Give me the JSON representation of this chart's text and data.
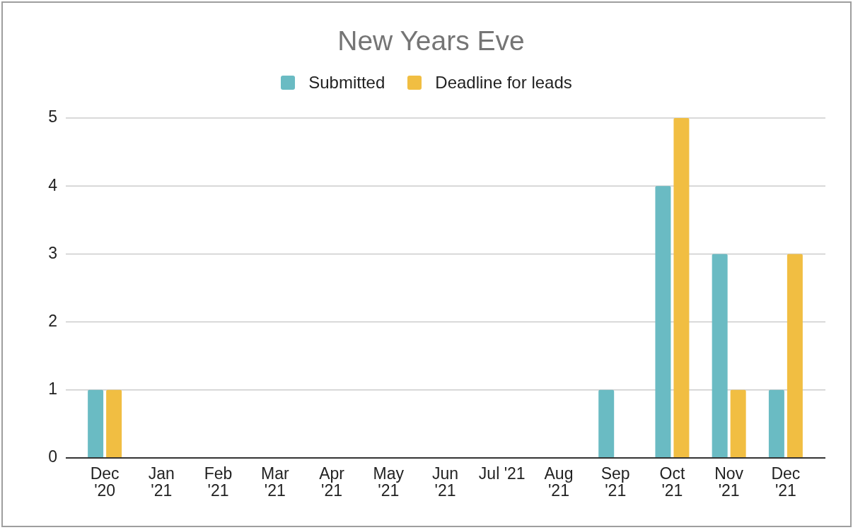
{
  "chart_data": {
    "type": "bar",
    "title": "New Years Eve",
    "categories": [
      "Dec '20",
      "Jan '21",
      "Feb '21",
      "Mar '21",
      "Apr '21",
      "May '21",
      "Jun '21",
      "Jul '21",
      "Aug '21",
      "Sep '21",
      "Oct '21",
      "Nov '21",
      "Dec '21"
    ],
    "series": [
      {
        "name": "Submitted",
        "color": "#6abbc3",
        "values": [
          1,
          0,
          0,
          0,
          0,
          0,
          0,
          0,
          0,
          1,
          4,
          3,
          1
        ]
      },
      {
        "name": "Deadline for leads",
        "color": "#f1be42",
        "values": [
          1,
          0,
          0,
          0,
          0,
          0,
          0,
          0,
          0,
          0,
          5,
          1,
          3
        ]
      }
    ],
    "ylim": [
      0,
      5
    ],
    "yticks": [
      0,
      1,
      2,
      3,
      4,
      5
    ],
    "grid": "y",
    "legend": "top"
  }
}
